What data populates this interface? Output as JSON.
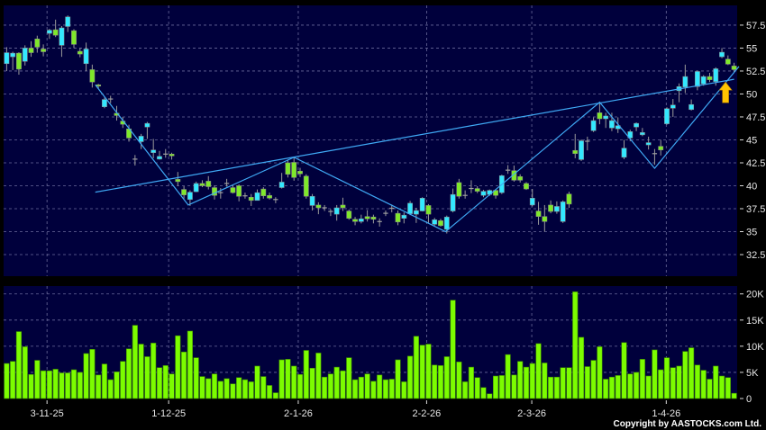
{
  "chart_data": {
    "type": "candlestick",
    "price_panel": {
      "ylim": [
        30.15,
        59.65
      ],
      "yticks": [
        32.5,
        35,
        37.5,
        40,
        42.5,
        45,
        47.5,
        50,
        52.5,
        55,
        57.5
      ],
      "ytick_labels": [
        "32.5",
        "35",
        "37.5",
        "40",
        "42.5",
        "45",
        "47.5",
        "50",
        "52.5",
        "55",
        "57.5"
      ],
      "grid": true,
      "candles_ohlc": [
        [
          53.3,
          55.1,
          52.5,
          54.5
        ],
        [
          54.05,
          54.6,
          52.6,
          54.45
        ],
        [
          54.45,
          54.55,
          52.1,
          52.7
        ],
        [
          53.55,
          55.3,
          53.1,
          55.0
        ],
        [
          55.0,
          55.75,
          54.05,
          54.5
        ],
        [
          56.0,
          56.35,
          54.5,
          55.1
        ],
        [
          54.9,
          55.4,
          54.1,
          54.6
        ],
        [
          56.6,
          57.1,
          56.0,
          56.95
        ],
        [
          57.0,
          58.1,
          56.2,
          56.4
        ],
        [
          55.3,
          57.4,
          54.05,
          57.2
        ],
        [
          57.35,
          58.55,
          56.75,
          58.4
        ],
        [
          56.9,
          57.05,
          55.0,
          55.4
        ],
        [
          54.65,
          55.0,
          54.0,
          54.35
        ],
        [
          53.3,
          55.6,
          52.5,
          54.9
        ],
        [
          52.65,
          53.2,
          50.7,
          51.3
        ],
        [
          51.0,
          51.1,
          50.6,
          50.95
        ],
        [
          48.6,
          49.6,
          48.45,
          49.4
        ],
        [
          49.45,
          49.8,
          49.0,
          49.45
        ],
        [
          47.9,
          48.7,
          47.1,
          47.65
        ],
        [
          47.05,
          47.5,
          46.3,
          46.7
        ],
        [
          46.2,
          46.65,
          44.8,
          45.2
        ],
        [
          42.9,
          43.35,
          42.2,
          42.9
        ],
        [
          44.8,
          45.65,
          44.0,
          45.4
        ],
        [
          46.4,
          46.95,
          45.1,
          46.8
        ],
        [
          43.6,
          45.1,
          43.0,
          43.9
        ],
        [
          42.9,
          43.8,
          42.85,
          43.2
        ],
        [
          43.45,
          44.0,
          43.05,
          43.45
        ],
        [
          43.45,
          43.6,
          42.85,
          43.25
        ],
        [
          40.7,
          41.5,
          40.0,
          40.45
        ],
        [
          39.6,
          39.95,
          38.6,
          39.0
        ],
        [
          38.5,
          39.5,
          37.8,
          39.3
        ],
        [
          39.35,
          40.45,
          39.3,
          40.25
        ],
        [
          40.25,
          40.6,
          39.85,
          40.0
        ],
        [
          40.5,
          41.05,
          39.6,
          39.9
        ],
        [
          39.8,
          40.05,
          38.5,
          38.95
        ],
        [
          39.25,
          39.75,
          38.6,
          39.25
        ],
        [
          40.25,
          40.75,
          39.9,
          40.25
        ],
        [
          39.8,
          40.05,
          39.15,
          39.25
        ],
        [
          40.0,
          40.15,
          38.3,
          38.85
        ],
        [
          38.9,
          39.25,
          38.6,
          38.9
        ],
        [
          38.75,
          39.1,
          37.8,
          38.4
        ],
        [
          38.4,
          39.6,
          38.4,
          39.25
        ],
        [
          39.65,
          39.85,
          38.6,
          38.9
        ],
        [
          38.95,
          39.25,
          38.5,
          38.65
        ],
        [
          38.5,
          38.75,
          38.1,
          38.5
        ],
        [
          39.8,
          41.4,
          39.7,
          40.4
        ],
        [
          42.5,
          42.75,
          40.9,
          41.25
        ],
        [
          42.55,
          43.05,
          40.55,
          40.9
        ],
        [
          41.6,
          41.95,
          40.95,
          41.3
        ],
        [
          41.05,
          41.25,
          38.6,
          38.85
        ],
        [
          37.85,
          39.1,
          37.3,
          38.85
        ],
        [
          37.9,
          38.2,
          36.9,
          37.6
        ],
        [
          37.6,
          37.9,
          37.25,
          37.6
        ],
        [
          37.2,
          37.45,
          36.7,
          37.2
        ],
        [
          36.9,
          37.9,
          36.2,
          37.6
        ],
        [
          37.9,
          38.7,
          37.25,
          37.6
        ],
        [
          37.25,
          37.4,
          36.3,
          36.45
        ],
        [
          36.35,
          36.6,
          35.7,
          36.1
        ],
        [
          36.1,
          36.85,
          35.9,
          36.4
        ],
        [
          36.65,
          37.35,
          36.1,
          36.4
        ],
        [
          36.6,
          36.85,
          35.9,
          36.35
        ],
        [
          36.1,
          36.45,
          35.55,
          36.1
        ],
        [
          37.0,
          37.3,
          36.7,
          37.0
        ],
        [
          37.55,
          37.95,
          37.1,
          37.55
        ],
        [
          37.0,
          37.3,
          35.7,
          36.05
        ],
        [
          36.45,
          37.1,
          35.9,
          36.8
        ],
        [
          36.95,
          38.35,
          36.8,
          38.1
        ],
        [
          36.9,
          37.6,
          35.95,
          37.3
        ],
        [
          37.25,
          38.75,
          37.2,
          38.65
        ],
        [
          37.85,
          38.0,
          35.95,
          36.9
        ],
        [
          35.8,
          36.5,
          35.65,
          36.3
        ],
        [
          36.2,
          36.4,
          35.55,
          35.65
        ],
        [
          35.25,
          36.75,
          34.8,
          36.6
        ],
        [
          37.25,
          39.7,
          37.1,
          39.05
        ],
        [
          40.35,
          40.75,
          38.6,
          38.85
        ],
        [
          38.95,
          39.5,
          38.6,
          38.95
        ],
        [
          39.7,
          40.6,
          39.2,
          39.7
        ],
        [
          39.7,
          39.95,
          39.2,
          39.4
        ],
        [
          38.95,
          39.55,
          38.75,
          39.4
        ],
        [
          39.05,
          39.6,
          38.9,
          39.5
        ],
        [
          39.5,
          39.6,
          38.6,
          38.95
        ],
        [
          39.25,
          41.2,
          39.1,
          41.1
        ],
        [
          41.7,
          42.25,
          41.3,
          41.7
        ],
        [
          41.65,
          42.2,
          40.45,
          40.6
        ],
        [
          41.0,
          41.25,
          40.35,
          40.6
        ],
        [
          40.25,
          40.4,
          39.55,
          39.65
        ],
        [
          37.9,
          39.65,
          37.75,
          38.65
        ],
        [
          37.25,
          38.25,
          35.75,
          36.65
        ],
        [
          36.65,
          37.9,
          35.0,
          36.1
        ],
        [
          37.9,
          38.4,
          37.0,
          37.2
        ],
        [
          37.2,
          38.3,
          36.95,
          37.75
        ],
        [
          36.1,
          38.4,
          35.95,
          38.25
        ],
        [
          39.1,
          39.35,
          37.6,
          38.0
        ],
        [
          43.85,
          45.65,
          43.0,
          43.5
        ],
        [
          42.85,
          45.05,
          42.7,
          44.9
        ],
        [
          44.85,
          45.35,
          43.85,
          44.85
        ],
        [
          46.0,
          47.45,
          45.85,
          47.1
        ],
        [
          47.95,
          49.0,
          46.7,
          47.3
        ],
        [
          47.3,
          47.95,
          46.3,
          47.6
        ],
        [
          46.3,
          47.95,
          45.95,
          47.1
        ],
        [
          46.2,
          47.45,
          45.75,
          46.55
        ],
        [
          43.1,
          45.0,
          42.9,
          44.1
        ],
        [
          45.2,
          46.1,
          44.85,
          45.9
        ],
        [
          46.4,
          46.9,
          45.95,
          46.8
        ],
        [
          45.55,
          46.3,
          45.4,
          45.8
        ],
        [
          44.45,
          45.35,
          43.95,
          44.7
        ],
        [
          43.5,
          44.0,
          42.3,
          43.5
        ],
        [
          44.3,
          45.0,
          43.3,
          43.9
        ],
        [
          46.75,
          48.55,
          46.65,
          48.4
        ],
        [
          48.45,
          49.45,
          47.5,
          48.8
        ],
        [
          50.35,
          51.15,
          49.1,
          50.8
        ],
        [
          50.75,
          53.2,
          50.1,
          51.9
        ],
        [
          48.3,
          49.4,
          48.2,
          48.85
        ],
        [
          50.8,
          52.55,
          50.4,
          52.45
        ],
        [
          51.1,
          52.05,
          50.9,
          51.9
        ],
        [
          51.9,
          52.3,
          51.3,
          51.55
        ],
        [
          51.35,
          52.9,
          50.9,
          52.75
        ],
        [
          54.05,
          55.0,
          53.9,
          54.55
        ],
        [
          53.8,
          54.2,
          53.15,
          53.25
        ],
        [
          53.05,
          53.4,
          52.4,
          52.65
        ]
      ],
      "trendlines": [
        {
          "kind": "neckline",
          "points": [
            [
              14.5,
              39.3
            ],
            [
              119,
              51.6
            ]
          ]
        },
        {
          "kind": "zigzag",
          "points": [
            [
              14.5,
              51.0
            ],
            [
              29.7,
              37.9
            ],
            [
              47,
              43.1
            ],
            [
              71.8,
              35.0
            ],
            [
              97,
              49.1
            ],
            [
              106,
              41.9
            ],
            [
              119.8,
              53.0
            ]
          ]
        }
      ],
      "annotation": {
        "type": "arrow-up",
        "bar": 117.6,
        "price": 51.3
      }
    },
    "volume_panel": {
      "unit": "K",
      "ylim": [
        0,
        21.5
      ],
      "yticks": [
        0,
        5,
        10,
        15,
        20
      ],
      "ytick_labels": [
        "0",
        "5K",
        "10K",
        "15K",
        "20K"
      ],
      "values": [
        6.7,
        7.1,
        12.8,
        9.9,
        4.6,
        7.3,
        5.3,
        5.3,
        5.6,
        4.9,
        4.9,
        5.5,
        5.0,
        8.6,
        9.4,
        4.5,
        6.6,
        3.6,
        5.1,
        7.1,
        9.5,
        14.0,
        10.4,
        8.0,
        10.6,
        5.9,
        6.3,
        4.7,
        12.0,
        8.9,
        12.9,
        7.8,
        4.2,
        3.8,
        4.7,
        3.3,
        3.8,
        2.8,
        4.0,
        3.6,
        3.2,
        6.2,
        4.2,
        2.5,
        1.1,
        7.4,
        7.5,
        6.2,
        4.6,
        9.2,
        5.8,
        8.7,
        4.1,
        4.7,
        6.0,
        5.3,
        7.8,
        3.6,
        4.1,
        4.7,
        3.3,
        4.5,
        3.6,
        3.7,
        7.4,
        3.2,
        8.1,
        11.9,
        10.2,
        10.4,
        6.4,
        6.3,
        8.0,
        18.8,
        7.0,
        3.2,
        6.0,
        4.0,
        2.1,
        0.9,
        4.3,
        4.4,
        8.4,
        4.5,
        7.1,
        6.0,
        6.7,
        10.5,
        6.8,
        4.1,
        4.1,
        5.9,
        5.9,
        20.4,
        11.7,
        6.1,
        7.3,
        9.9,
        3.7,
        4.1,
        4.4,
        10.7,
        4.7,
        5.0,
        7.5,
        4.3,
        9.3,
        5.5,
        7.8,
        5.9,
        6.2,
        9.0,
        9.7,
        6.4,
        5.4,
        3.7,
        6.2,
        4.3,
        4.0,
        1.0
      ]
    },
    "x_ticks": [
      {
        "label": "3-11-25",
        "bar": 6.6
      },
      {
        "label": "1-12-25",
        "bar": 26.5
      },
      {
        "label": "2-1-26",
        "bar": 47.7
      },
      {
        "label": "2-2-26",
        "bar": 68.7
      },
      {
        "label": "2-3-26",
        "bar": 85.9
      },
      {
        "label": "1-4-26",
        "bar": 107.9
      }
    ],
    "colors": {
      "background": "#000000",
      "panel": "#00003c",
      "grid": "#6a6a9a",
      "up_candle": "#33e8ff",
      "down_candle": "#7fe82a",
      "doji": "#a0a0a0",
      "volume": "#7cfc00",
      "trendline": "#3fa9f5",
      "arrow": "#ffc400"
    }
  },
  "footer": {
    "copyright": "Copyright by AASTOCKS.com Ltd."
  }
}
